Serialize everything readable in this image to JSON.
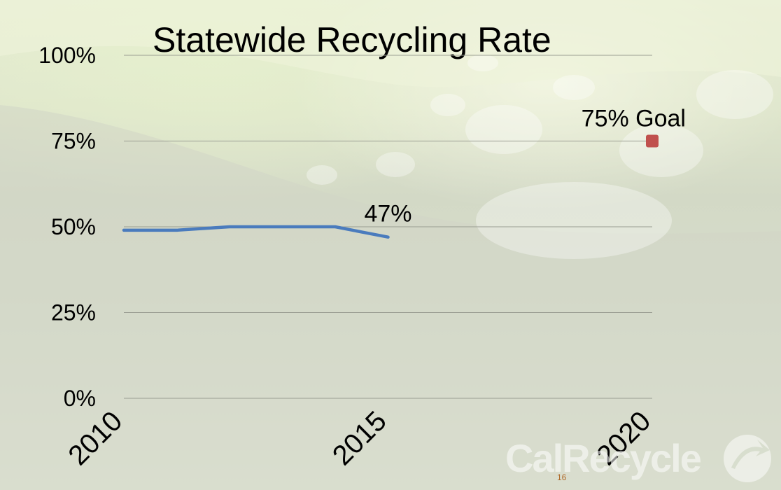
{
  "chart_data": {
    "type": "line",
    "title": "Statewide Recycling Rate",
    "xlabel": "",
    "ylabel": "",
    "x_ticks": [
      "2010",
      "2015",
      "2020"
    ],
    "xlim": [
      2010,
      2020
    ],
    "y_ticks": [
      "0%",
      "25%",
      "50%",
      "75%",
      "100%"
    ],
    "ylim": [
      0,
      100
    ],
    "grid": "horizontal",
    "series": [
      {
        "color": "#4a7bbd",
        "x": [
          2010,
          2011,
          2012,
          2013,
          2014,
          2014.5,
          2015
        ],
        "values": [
          49,
          49,
          50,
          50,
          50,
          48.5,
          47
        ]
      }
    ],
    "goal_point": {
      "x": 2020,
      "value": 75,
      "color": "#c0504d"
    },
    "annotations": [
      {
        "text": "47%",
        "x": 2015,
        "value": 47
      },
      {
        "text": "75% Goal",
        "x": 2020,
        "value": 75
      }
    ]
  },
  "footer": {
    "logo_text": "CalRecycle",
    "page_number": "16"
  }
}
